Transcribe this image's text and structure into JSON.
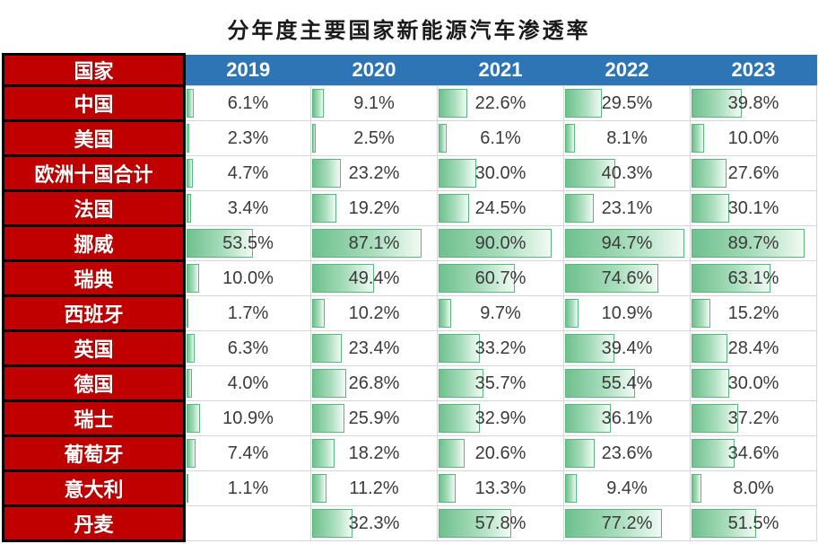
{
  "title": "分年度主要国家新能源汽车渗透率",
  "colors": {
    "country_bg": "#C00000",
    "year_header_bg": "#2E75B6",
    "header_text": "#FFFFFF",
    "bar_border": "#57B87B",
    "bar_fill_start": "#6FC08E",
    "bar_fill_end": "#F1FAF4",
    "gridline": "#D6D6D6",
    "value_text": "#3A3A3A",
    "cell_border": "#000000"
  },
  "chart_data": {
    "type": "table",
    "title": "分年度主要国家新能源汽车渗透率",
    "corner_header": "国家",
    "unit": "%",
    "value_range": [
      0,
      100
    ],
    "bar_style": "excel-gradient-data-bar",
    "years": [
      "2019",
      "2020",
      "2021",
      "2022",
      "2023"
    ],
    "rows": [
      {
        "country": "中国",
        "values": [
          6.1,
          9.1,
          22.6,
          29.5,
          39.8
        ]
      },
      {
        "country": "美国",
        "values": [
          2.3,
          2.5,
          6.1,
          8.1,
          10.0
        ]
      },
      {
        "country": "欧洲十国合计",
        "values": [
          4.7,
          23.2,
          30.0,
          40.3,
          27.6
        ]
      },
      {
        "country": "法国",
        "values": [
          3.4,
          19.2,
          24.5,
          23.1,
          30.1
        ]
      },
      {
        "country": "挪威",
        "values": [
          53.5,
          87.1,
          90.0,
          94.7,
          89.7
        ]
      },
      {
        "country": "瑞典",
        "values": [
          10.0,
          49.4,
          60.7,
          74.6,
          63.1
        ]
      },
      {
        "country": "西班牙",
        "values": [
          1.7,
          10.2,
          9.7,
          10.9,
          15.2
        ]
      },
      {
        "country": "英国",
        "values": [
          6.3,
          23.4,
          33.2,
          39.4,
          28.4
        ]
      },
      {
        "country": "德国",
        "values": [
          4.0,
          26.8,
          35.7,
          55.4,
          30.0
        ]
      },
      {
        "country": "瑞士",
        "values": [
          10.9,
          25.9,
          32.9,
          36.1,
          37.2
        ]
      },
      {
        "country": "葡萄牙",
        "values": [
          7.4,
          18.2,
          20.6,
          23.6,
          34.6
        ]
      },
      {
        "country": "意大利",
        "values": [
          1.1,
          11.2,
          13.3,
          9.4,
          8.0
        ]
      },
      {
        "country": "丹麦",
        "values": [
          null,
          32.3,
          57.8,
          77.2,
          51.5
        ]
      }
    ]
  }
}
